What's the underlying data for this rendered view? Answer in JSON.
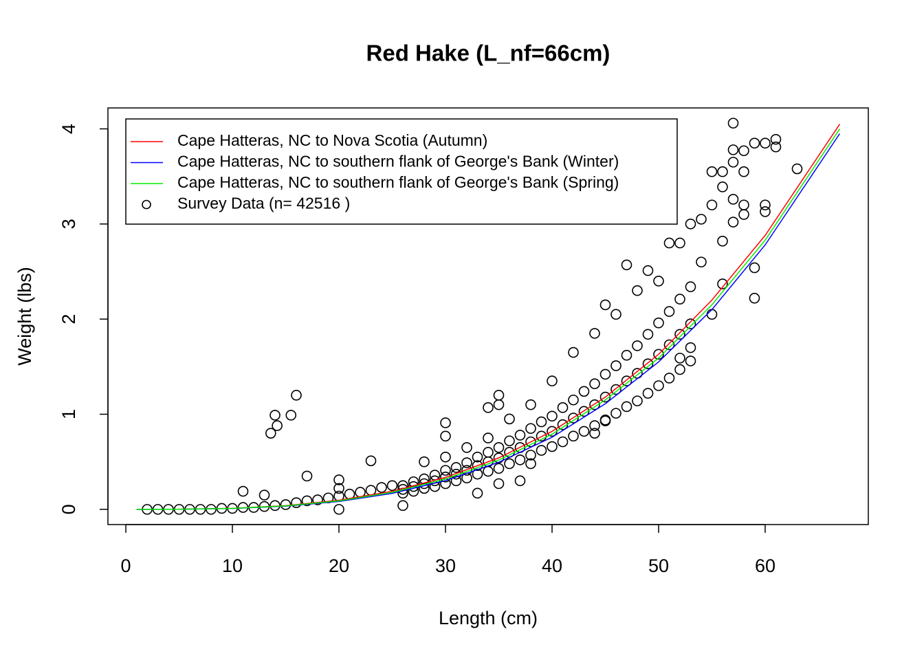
{
  "chart_data": {
    "type": "scatter",
    "title": "Red Hake (L_nf=66cm)",
    "x_label": "Length (cm)",
    "y_label": "Weight (lbs)",
    "xlim": [
      -1.68,
      69.68
    ],
    "ylim": [
      -0.16,
      4.22
    ],
    "xticks": [
      0,
      10,
      20,
      30,
      40,
      50,
      60
    ],
    "yticks": [
      0,
      1,
      2,
      3,
      4
    ],
    "legend": "topleft",
    "series": [
      {
        "name": "Cape Hatteras, NC to Nova Scotia (Autumn)",
        "type": "line",
        "color": "#ff0000",
        "x": [
          1,
          5,
          10,
          15,
          20,
          25,
          30,
          35,
          40,
          45,
          50,
          55,
          60,
          67
        ],
        "values": [
          0,
          0.0013,
          0.011,
          0.039,
          0.096,
          0.19,
          0.336,
          0.541,
          0.82,
          1.18,
          1.63,
          2.2,
          2.88,
          4.05
        ]
      },
      {
        "name": "Cape Hatteras, NC to southern flank of George's Bank (Winter)",
        "type": "line",
        "color": "#0000ff",
        "x": [
          1,
          5,
          10,
          15,
          20,
          25,
          30,
          35,
          40,
          45,
          50,
          55,
          60,
          67
        ],
        "values": [
          0,
          0.001,
          0.009,
          0.033,
          0.083,
          0.168,
          0.302,
          0.495,
          0.758,
          1.11,
          1.55,
          2.1,
          2.78,
          3.95
        ]
      },
      {
        "name": "Cape Hatteras, NC to southern flank of George's Bank (Spring)",
        "type": "line",
        "color": "#00ee00",
        "x": [
          1,
          5,
          10,
          15,
          20,
          25,
          30,
          35,
          40,
          45,
          50,
          55,
          60,
          67
        ],
        "values": [
          0,
          0.0012,
          0.01,
          0.036,
          0.089,
          0.179,
          0.319,
          0.518,
          0.79,
          1.15,
          1.59,
          2.15,
          2.83,
          4.0
        ]
      },
      {
        "name": "Survey Data (n= 42516 )",
        "type": "scatter",
        "color": "#000000",
        "x": [
          2,
          3,
          4,
          5,
          6,
          7,
          8,
          9,
          10,
          11,
          12,
          13,
          14,
          15,
          16,
          17,
          18,
          19,
          20,
          21,
          22,
          23,
          24,
          25,
          11,
          13,
          13.6,
          14,
          14.2,
          15.5,
          16,
          17,
          20,
          20,
          20,
          23,
          26,
          30,
          30,
          33,
          34,
          35,
          35,
          35,
          37,
          38,
          44,
          45,
          45,
          47,
          49,
          52,
          53,
          51,
          53,
          54,
          55,
          56,
          55,
          56,
          57,
          57,
          58,
          57,
          58,
          59,
          60,
          61,
          61,
          63,
          57,
          58,
          58,
          57,
          56,
          60,
          60,
          59,
          59,
          55,
          56,
          54,
          52,
          50,
          48,
          46,
          44,
          42,
          40,
          38,
          36,
          34,
          32,
          30,
          28,
          26,
          26,
          26,
          27,
          27,
          27,
          28,
          28,
          28,
          29,
          29,
          29,
          30,
          30,
          30,
          31,
          31,
          31,
          32,
          32,
          32,
          33,
          33,
          33,
          34,
          34,
          34,
          35,
          35,
          35,
          36,
          36,
          36,
          37,
          37,
          37,
          38,
          38,
          38,
          39,
          39,
          39,
          40,
          40,
          40,
          41,
          41,
          41,
          42,
          42,
          42,
          43,
          43,
          43,
          44,
          44,
          44,
          45,
          45,
          45,
          46,
          46,
          46,
          47,
          47,
          47,
          48,
          48,
          48,
          49,
          49,
          49,
          50,
          50,
          50,
          51,
          51,
          51,
          52,
          52,
          52,
          53,
          53,
          53
        ],
        "values": [
          0,
          0,
          0,
          0,
          0,
          0,
          0,
          0.01,
          0.01,
          0.02,
          0.02,
          0.03,
          0.04,
          0.05,
          0.07,
          0.09,
          0.1,
          0.12,
          0.14,
          0.16,
          0.18,
          0.2,
          0.23,
          0.25,
          0.19,
          0.15,
          0.8,
          0.99,
          0.88,
          0.99,
          1.2,
          0.35,
          0.31,
          0.22,
          0,
          0.51,
          0.04,
          0.91,
          0.77,
          0.17,
          1.07,
          1.2,
          1.1,
          0.27,
          0.3,
          0.48,
          0.8,
          2.15,
          0.93,
          2.57,
          2.51,
          1.59,
          1.7,
          2.8,
          3.0,
          3.05,
          3.55,
          3.55,
          3.2,
          3.39,
          4.06,
          3.78,
          3.77,
          3.65,
          3.55,
          3.85,
          3.85,
          3.89,
          3.81,
          3.58,
          3.26,
          3.2,
          3.1,
          3.02,
          2.82,
          3.2,
          3.13,
          2.54,
          2.22,
          2.05,
          2.37,
          2.6,
          2.8,
          2.4,
          2.3,
          2.05,
          1.85,
          1.65,
          1.35,
          1.1,
          0.95,
          0.75,
          0.65,
          0.55,
          0.5,
          0.17,
          0.21,
          0.25,
          0.19,
          0.24,
          0.29,
          0.22,
          0.27,
          0.32,
          0.24,
          0.3,
          0.36,
          0.27,
          0.34,
          0.41,
          0.3,
          0.37,
          0.44,
          0.33,
          0.41,
          0.49,
          0.37,
          0.46,
          0.55,
          0.4,
          0.5,
          0.6,
          0.43,
          0.54,
          0.65,
          0.48,
          0.6,
          0.72,
          0.52,
          0.65,
          0.78,
          0.57,
          0.71,
          0.85,
          0.62,
          0.77,
          0.92,
          0.66,
          0.82,
          0.98,
          0.71,
          0.89,
          1.07,
          0.77,
          0.96,
          1.15,
          0.82,
          1.03,
          1.24,
          0.88,
          1.1,
          1.32,
          0.94,
          1.18,
          1.42,
          1.01,
          1.26,
          1.51,
          1.08,
          1.35,
          1.62,
          1.14,
          1.43,
          1.72,
          1.22,
          1.53,
          1.84,
          1.3,
          1.63,
          1.96,
          1.38,
          1.73,
          2.08,
          1.47,
          1.84,
          2.21,
          1.56,
          1.95,
          2.34
        ]
      }
    ]
  }
}
